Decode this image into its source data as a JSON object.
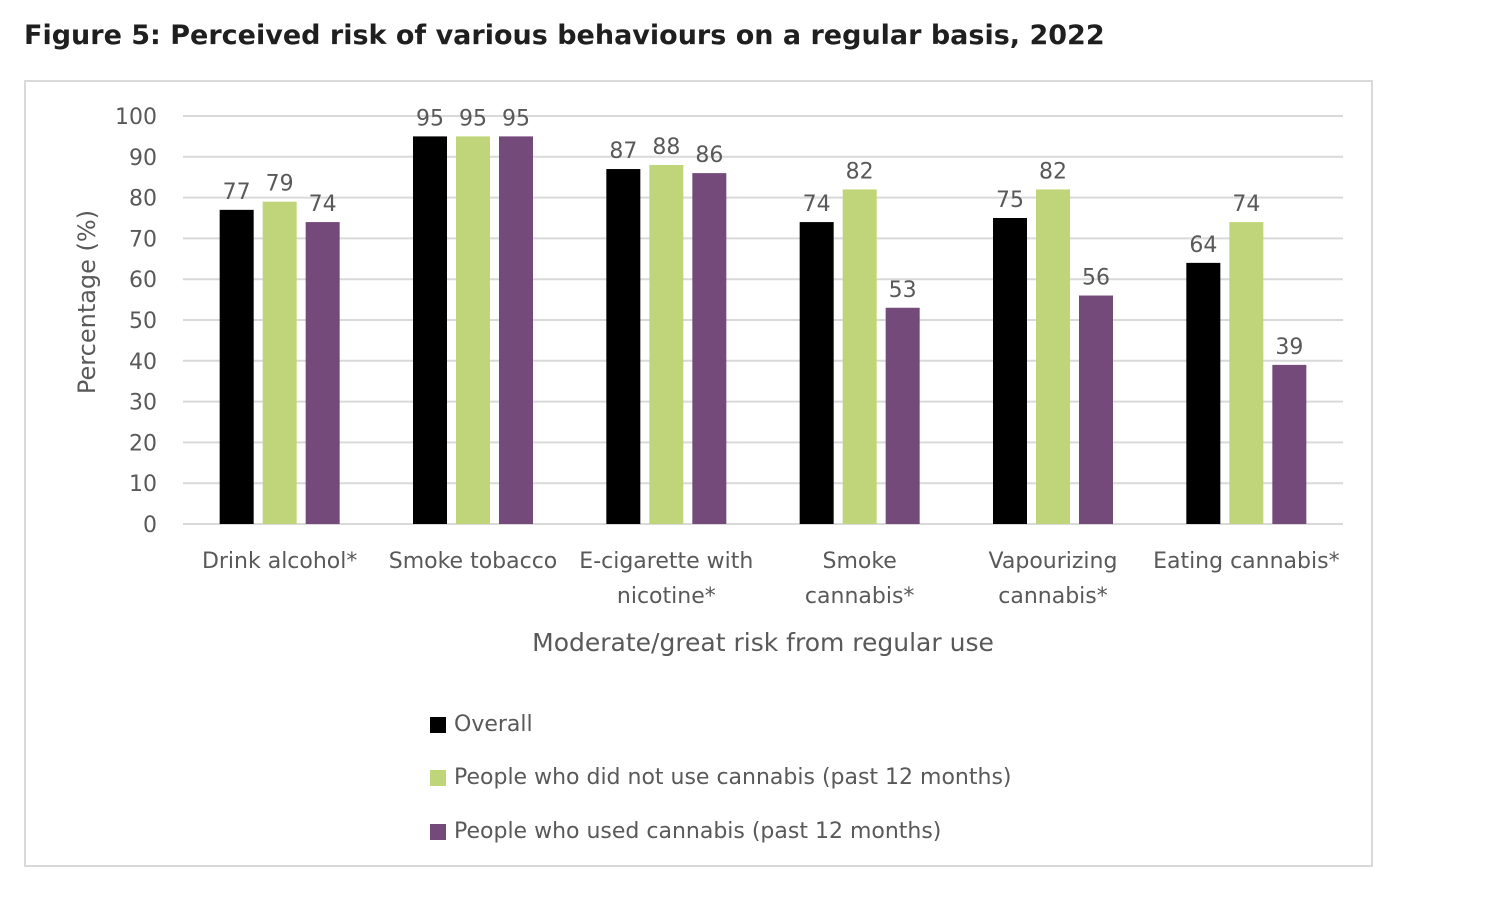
{
  "figure_title": "Figure 5: Perceived risk of various behaviours on a regular basis, 2022",
  "chart_data": {
    "type": "bar",
    "title": "",
    "xlabel": "Moderate/great risk from regular use",
    "ylabel": "Percentage (%)",
    "ylim": [
      0,
      100
    ],
    "yticks": [
      0,
      10,
      20,
      30,
      40,
      50,
      60,
      70,
      80,
      90,
      100
    ],
    "grid": true,
    "legend_position": "bottom",
    "categories": [
      [
        "Drink alcohol*"
      ],
      [
        "Smoke tobacco"
      ],
      [
        "E-cigarette with",
        "nicotine*"
      ],
      [
        "Smoke",
        "cannabis*"
      ],
      [
        "Vapourizing",
        "cannabis*"
      ],
      [
        "Eating cannabis*"
      ]
    ],
    "series": [
      {
        "name": "Overall",
        "color": "#000000",
        "values": [
          77,
          95,
          87,
          74,
          75,
          64
        ]
      },
      {
        "name": "People who did not use cannabis (past 12 months)",
        "color": "#c0d57a",
        "values": [
          79,
          95,
          88,
          82,
          82,
          74
        ]
      },
      {
        "name": "People who used cannabis (past 12 months)",
        "color": "#744a7b",
        "values": [
          74,
          95,
          86,
          53,
          56,
          39
        ]
      }
    ]
  }
}
